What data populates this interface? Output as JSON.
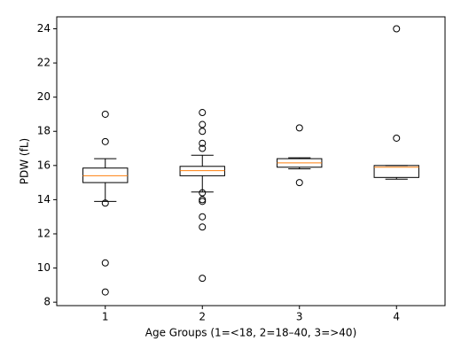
{
  "chart_data": {
    "type": "box",
    "x_label": "Age Groups (1=<18, 2=18–40, 3=>40)",
    "y_label": "PDW (fL)",
    "categories": [
      "1",
      "2",
      "3",
      "4"
    ],
    "ylim": [
      7.8,
      24.7
    ],
    "yticks": [
      8,
      10,
      12,
      14,
      16,
      18,
      20,
      22,
      24
    ],
    "box_color": "#000000",
    "median_color": "#ff7f0e",
    "boxes": [
      {
        "whisker_low": 13.9,
        "q1": 15.0,
        "median": 15.4,
        "q3": 15.85,
        "whisker_high": 16.4,
        "outliers": [
          19.0,
          17.4,
          13.8,
          10.3,
          8.6
        ]
      },
      {
        "whisker_low": 14.45,
        "q1": 15.4,
        "median": 15.7,
        "q3": 15.95,
        "whisker_high": 16.6,
        "outliers": [
          19.1,
          18.4,
          18.0,
          17.3,
          17.0,
          14.4,
          14.0,
          13.9,
          13.0,
          12.4,
          9.4
        ]
      },
      {
        "whisker_low": 15.8,
        "q1": 15.9,
        "median": 16.15,
        "q3": 16.4,
        "whisker_high": 16.45,
        "outliers": [
          18.2,
          15.0
        ]
      },
      {
        "whisker_low": 15.2,
        "q1": 15.3,
        "median": 15.9,
        "q3": 16.0,
        "whisker_high": 16.0,
        "outliers": [
          24.0,
          17.6
        ]
      }
    ]
  }
}
